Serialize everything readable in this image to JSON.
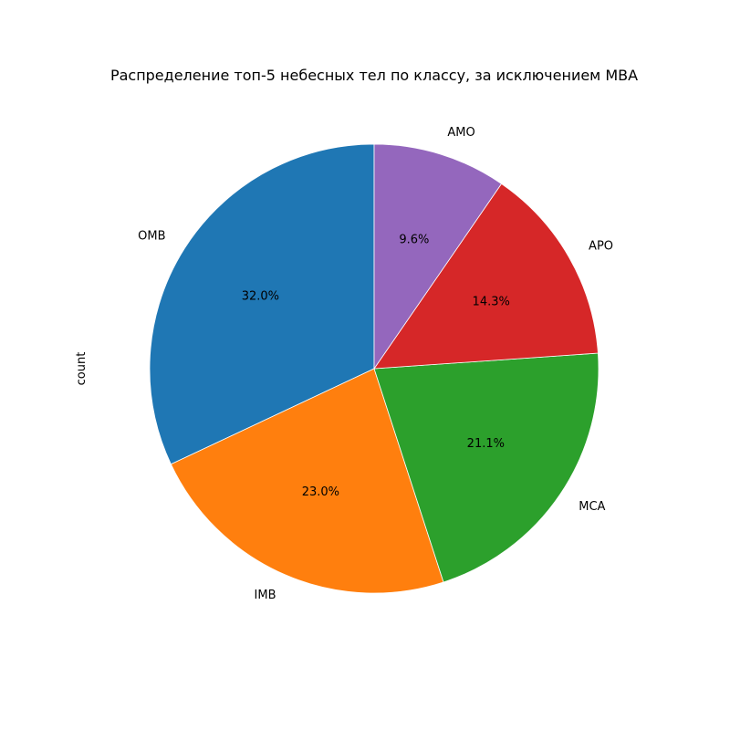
{
  "chart_data": {
    "type": "pie",
    "title": "Распределение топ-5 небесных тел по классу, за исключением MBA",
    "ylabel": "count",
    "start_angle_deg": 90,
    "direction": "counterclockwise",
    "slices": [
      {
        "label": "OMB",
        "percent": 32.0,
        "percent_label": "32.0%",
        "color": "#1f77b4"
      },
      {
        "label": "IMB",
        "percent": 23.0,
        "percent_label": "23.0%",
        "color": "#ff7f0e"
      },
      {
        "label": "MCA",
        "percent": 21.1,
        "percent_label": "21.1%",
        "color": "#2ca02c"
      },
      {
        "label": "APO",
        "percent": 14.3,
        "percent_label": "14.3%",
        "color": "#d62728"
      },
      {
        "label": "AMO",
        "percent": 9.6,
        "percent_label": "9.6%",
        "color": "#9467bd"
      }
    ]
  }
}
